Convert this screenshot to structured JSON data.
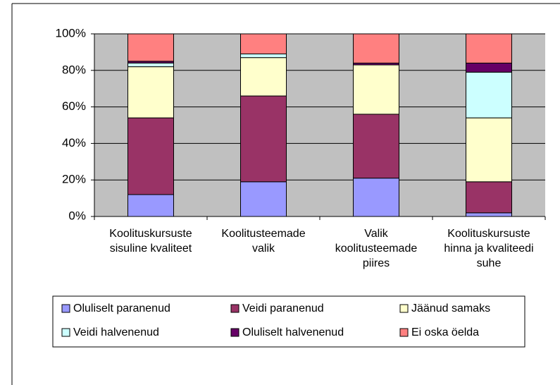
{
  "chart_data": {
    "type": "stacked_bar",
    "categories": [
      "Koolituskursuste sisuline kvaliteet",
      "Koolitusteemade valik",
      "Valik koolitusteemade piires",
      "Koolituskursuste hinna ja kvaliteedi suhe"
    ],
    "series": [
      {
        "name": "Oluliselt paranenud",
        "color": "#9999ff",
        "values": [
          12,
          19,
          21,
          2
        ]
      },
      {
        "name": "Veidi paranenud",
        "color": "#993366",
        "values": [
          42,
          47,
          35,
          17
        ]
      },
      {
        "name": "Jäänud samaks",
        "color": "#ffffcc",
        "values": [
          28,
          21,
          27,
          35
        ]
      },
      {
        "name": "Veidi halvenenud",
        "color": "#ccffff",
        "values": [
          2,
          2,
          0,
          25
        ]
      },
      {
        "name": "Oluliselt halvenenud",
        "color": "#660066",
        "values": [
          1,
          0,
          1,
          5
        ]
      },
      {
        "name": "Ei oska öelda",
        "color": "#ff8080",
        "values": [
          15,
          11,
          16,
          16
        ]
      }
    ],
    "ylim": [
      0,
      100
    ],
    "yticks": [
      {
        "value": 0,
        "label": "0%"
      },
      {
        "value": 20,
        "label": "20%"
      },
      {
        "value": 40,
        "label": "40%"
      },
      {
        "value": 60,
        "label": "60%"
      },
      {
        "value": 80,
        "label": "80%"
      },
      {
        "value": 100,
        "label": "100%"
      }
    ],
    "grid": true,
    "plot_background": "#c0c0c0",
    "legend": "bottom"
  }
}
